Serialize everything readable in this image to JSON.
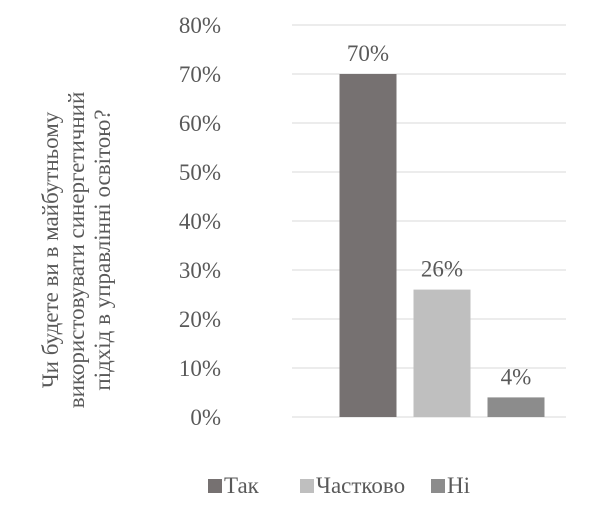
{
  "chart_data": {
    "type": "bar",
    "ylabel_lines": [
      "Чи будете ви в майбутньому",
      "використовувати синергетичний",
      "підхід  в управлінні  освітою?"
    ],
    "ylim": [
      0,
      80
    ],
    "y_ticks": [
      0,
      10,
      20,
      30,
      40,
      50,
      60,
      70,
      80
    ],
    "y_tick_labels": [
      "0%",
      "10%",
      "20%",
      "30%",
      "40%",
      "50%",
      "60%",
      "70%",
      "80%"
    ],
    "grid": true,
    "legend_position": "bottom",
    "series": [
      {
        "name": "Так",
        "value": 70,
        "label": "70%",
        "color": "#767171"
      },
      {
        "name": "Частково",
        "value": 26,
        "label": "26%",
        "color": "#bfbfbf"
      },
      {
        "name": "Ні",
        "value": 4,
        "label": "4%",
        "color": "#8c8c8c"
      }
    ]
  }
}
